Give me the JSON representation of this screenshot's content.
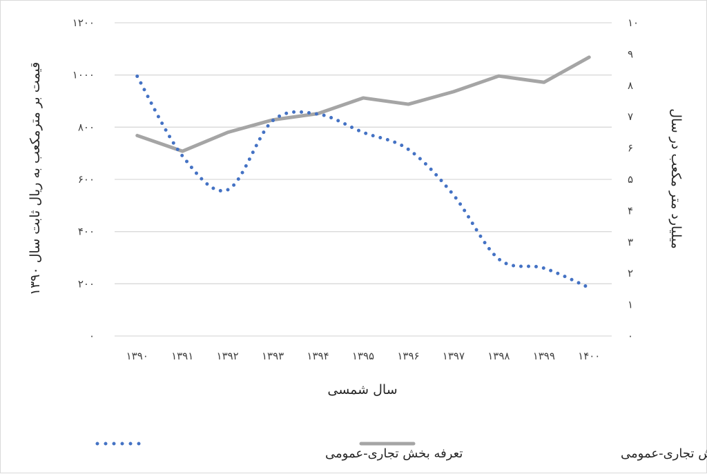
{
  "chart_data": {
    "type": "line",
    "xlabel": "سال شمسی",
    "x": [
      "۱۳۹۰",
      "۱۳۹۱",
      "۱۳۹۲",
      "۱۳۹۳",
      "۱۳۹۴",
      "۱۳۹۵",
      "۱۳۹۶",
      "۱۳۹۷",
      "۱۳۹۸",
      "۱۳۹۹",
      "۱۴۰۰"
    ],
    "y_left": {
      "label": "قیمت بر مترمکعب به ریال ثابت سال ۱۳۹۰",
      "ylim": [
        0,
        1200
      ],
      "ticks": [
        0,
        200,
        400,
        600,
        800,
        1000,
        1200
      ],
      "tick_labels": [
        "۰",
        "۲۰۰",
        "۴۰۰",
        "۶۰۰",
        "۸۰۰",
        "۱۰۰۰",
        "۱۲۰۰"
      ]
    },
    "y_right": {
      "label": "میلیارد متر مکعب در سال",
      "ylim": [
        0,
        10
      ],
      "ticks": [
        0,
        1,
        2,
        3,
        4,
        5,
        6,
        7,
        8,
        9,
        10
      ],
      "tick_labels": [
        "۰",
        "۱",
        "۲",
        "۳",
        "۴",
        "۵",
        "۶",
        "۷",
        "۸",
        "۹",
        "۱۰"
      ]
    },
    "grid": true,
    "legend_position": "bottom",
    "series": [
      {
        "name": "تعرفه بخش تجاری-عمومی",
        "axis": "left",
        "style": "dotted",
        "color": "#4472C4",
        "values": [
          995,
          690,
          560,
          825,
          850,
          780,
          715,
          540,
          295,
          260,
          185
        ]
      },
      {
        "name": "مصرف گاز بخش تجاری-عمومی",
        "axis": "right",
        "style": "solid",
        "color": "#A5A5A5",
        "values": [
          6.4,
          5.9,
          6.5,
          6.9,
          7.1,
          7.6,
          7.4,
          7.8,
          8.3,
          8.1,
          8.9
        ]
      }
    ]
  }
}
